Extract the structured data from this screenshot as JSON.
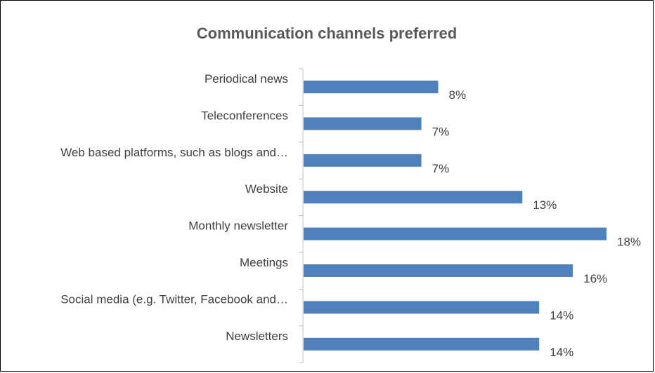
{
  "chart_data": {
    "type": "bar",
    "orientation": "horizontal",
    "title": "Communication channels preferred",
    "categories": [
      "Periodical news",
      "Teleconferences",
      "Web based platforms, such as blogs and…",
      "Website",
      "Monthly newsletter",
      "Meetings",
      "Social media (e.g. Twitter, Facebook and…",
      "Newsletters"
    ],
    "values": [
      8,
      7,
      7,
      13,
      18,
      16,
      14,
      14
    ],
    "value_labels": [
      "8%",
      "7%",
      "7%",
      "13%",
      "18%",
      "16%",
      "14%",
      "14%"
    ],
    "unit": "%",
    "xlim": [
      0,
      18
    ],
    "bar_color": "#4F81BD",
    "grid": false,
    "legend": "none"
  }
}
